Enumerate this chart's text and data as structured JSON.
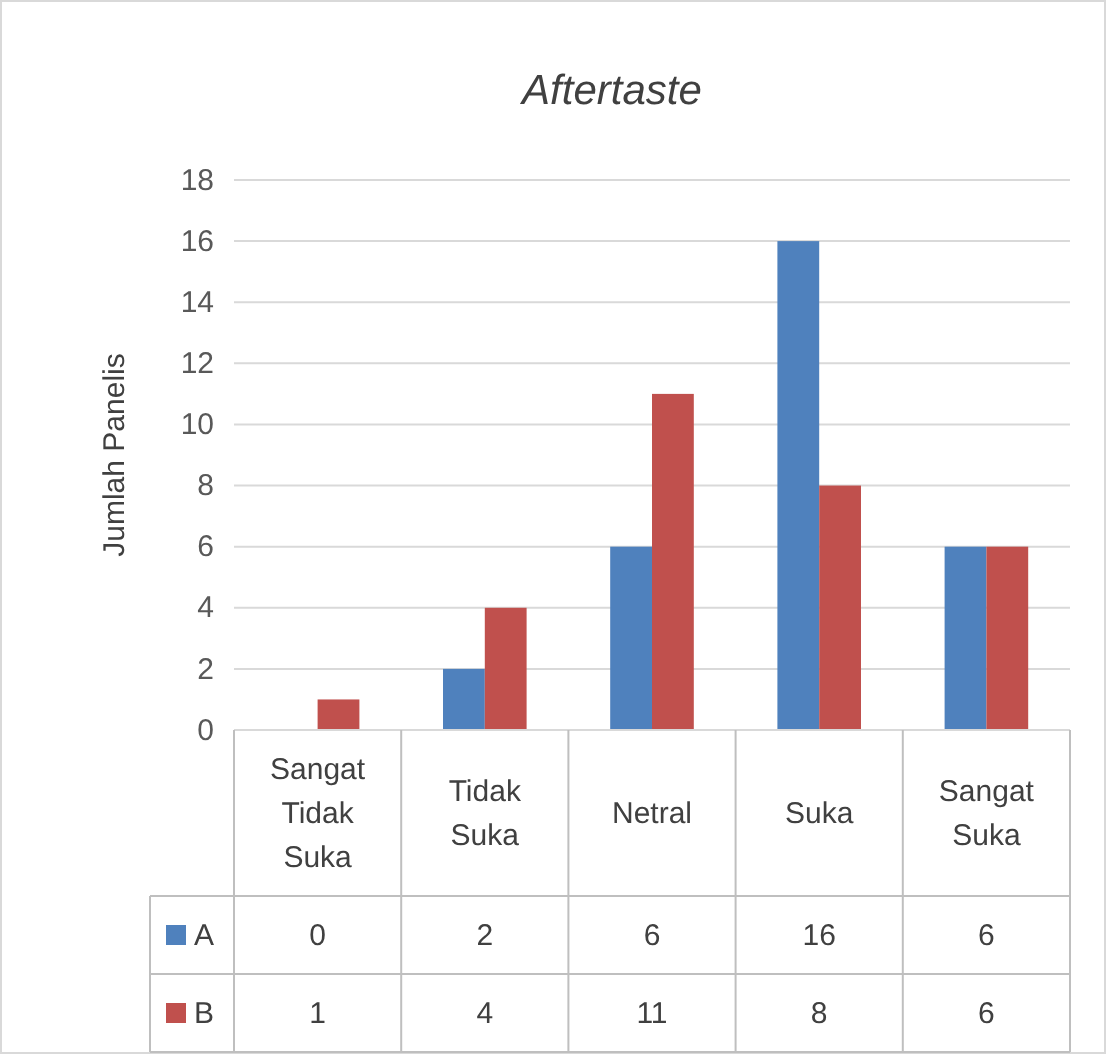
{
  "chart_data": {
    "type": "bar",
    "title": "Aftertaste",
    "ylabel": "Jumlah Panelis",
    "categories": [
      "Sangat Tidak Suka",
      "Tidak Suka",
      "Netral",
      "Suka",
      "Sangat Suka"
    ],
    "series": [
      {
        "name": "A",
        "color": "#4f81bd",
        "values": [
          0,
          2,
          6,
          16,
          6
        ]
      },
      {
        "name": "B",
        "color": "#c0504d",
        "values": [
          1,
          4,
          11,
          8,
          6
        ]
      }
    ],
    "ylim": [
      0,
      18
    ],
    "yticks": [
      0,
      2,
      4,
      6,
      8,
      10,
      12,
      14,
      16,
      18
    ],
    "grid": "y",
    "legend": "bottom",
    "data_labels": true
  }
}
